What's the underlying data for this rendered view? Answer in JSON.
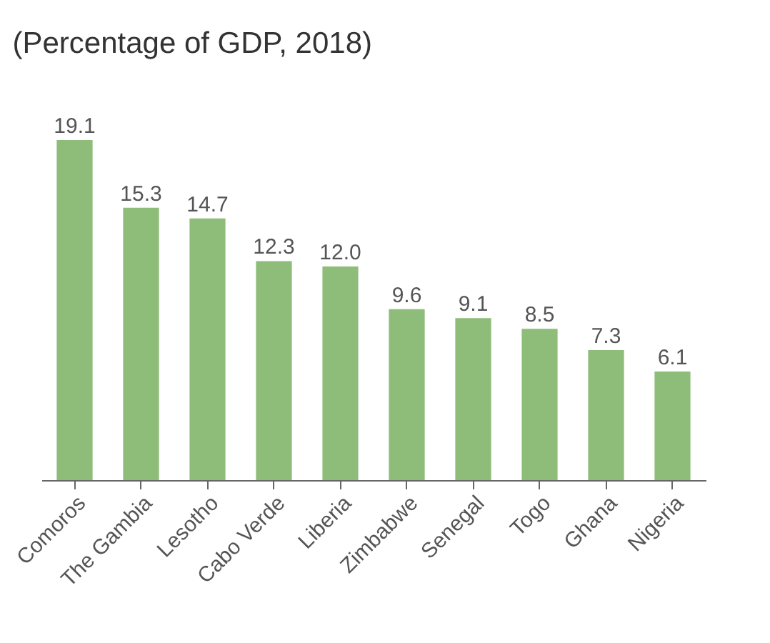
{
  "chart_data": {
    "type": "bar",
    "title": "(Percentage of GDP, 2018)",
    "categories": [
      "Comoros",
      "The Gambia",
      "Lesotho",
      "Cabo Verde",
      "Liberia",
      "Zimbabwe",
      "Senegal",
      "Togo",
      "Ghana",
      "Nigeria"
    ],
    "values": [
      19.1,
      15.3,
      14.7,
      12.3,
      12.0,
      9.6,
      9.1,
      8.5,
      7.3,
      6.1
    ],
    "value_labels": [
      "19.1",
      "15.3",
      "14.7",
      "12.3",
      "12.0",
      "9.6",
      "9.1",
      "8.5",
      "7.3",
      "6.1"
    ],
    "color": "#8dbd78"
  }
}
